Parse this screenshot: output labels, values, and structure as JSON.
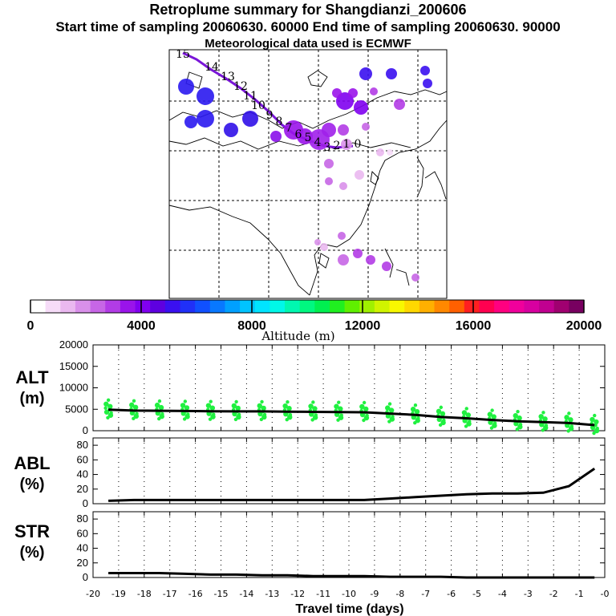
{
  "header": {
    "title": "Retroplume summary for Shangdianzi_200606",
    "subtitle": "Start time of sampling 20060630. 60000     End time of sampling 20060630. 90000",
    "met": "Meteorological data used is ECMWF"
  },
  "colorbar": {
    "ticks": [
      "0",
      "4000",
      "8000",
      "12000",
      "16000",
      "20000"
    ],
    "label": "Altitude (m)",
    "colors": [
      "#ffffff",
      "#f6dcf8",
      "#eab8f0",
      "#d990ea",
      "#c766e6",
      "#b23ce6",
      "#9a14ea",
      "#8000f0",
      "#5e00e0",
      "#3a10f0",
      "#2030f8",
      "#1050ff",
      "#0878ff",
      "#00a0ff",
      "#00c4ff",
      "#00e4ff",
      "#00f8e8",
      "#00f8b0",
      "#00f880",
      "#00f050",
      "#20f020",
      "#60f000",
      "#a0f000",
      "#d0f400",
      "#f8f800",
      "#ffd800",
      "#ffb000",
      "#ff8800",
      "#ff6000",
      "#ff2020",
      "#ff0050",
      "#ff0080",
      "#f0009c",
      "#d800a0",
      "#c00090",
      "#a00070",
      "#780060"
    ]
  },
  "map": {
    "labels": [
      "15",
      "14",
      "13",
      "12",
      "11",
      "10",
      "9",
      "8",
      "7",
      "6",
      "5",
      "4",
      "3",
      "2",
      "1",
      "0"
    ]
  },
  "chart_data": [
    {
      "type": "line",
      "panel": "ALT",
      "ylabel": "ALT (m)",
      "ylim": [
        0,
        20000
      ],
      "yticks": [
        "0",
        "5000",
        "10000",
        "15000",
        "20000"
      ],
      "x": [
        -19.4,
        -18.4,
        -17.4,
        -16.4,
        -15.4,
        -14.4,
        -13.4,
        -12.4,
        -11.4,
        -10.4,
        -9.4,
        -8.4,
        -7.4,
        -6.4,
        -5.4,
        -4.4,
        -3.4,
        -2.4,
        -1.4,
        -0.4
      ],
      "values": [
        4900,
        4700,
        4650,
        4600,
        4550,
        4500,
        4500,
        4450,
        4400,
        4350,
        4300,
        4000,
        3700,
        3200,
        2900,
        2500,
        2200,
        2000,
        1800,
        1300
      ],
      "scatter_color": "#20f040"
    },
    {
      "type": "line",
      "panel": "ABL",
      "ylabel": "ABL (%)",
      "ylim": [
        0,
        90
      ],
      "yticks": [
        "0",
        "20",
        "40",
        "60",
        "80"
      ],
      "x": [
        -19.4,
        -18.4,
        -17.4,
        -16.4,
        -15.4,
        -14.4,
        -13.4,
        -12.4,
        -11.4,
        -10.4,
        -9.4,
        -8.4,
        -7.4,
        -6.4,
        -5.4,
        -4.4,
        -3.4,
        -2.4,
        -1.4,
        -0.4
      ],
      "values": [
        4,
        5,
        5,
        5,
        5,
        5,
        5,
        5,
        5,
        5,
        5,
        7,
        9,
        11,
        13,
        14,
        14,
        15,
        24,
        48
      ]
    },
    {
      "type": "line",
      "panel": "STR",
      "ylabel": "STR (%)",
      "ylim": [
        0,
        90
      ],
      "yticks": [
        "0",
        "20",
        "40",
        "60",
        "80"
      ],
      "x": [
        -19.4,
        -18.4,
        -17.4,
        -16.4,
        -15.4,
        -14.4,
        -13.4,
        -12.4,
        -11.4,
        -10.4,
        -9.4,
        -8.4,
        -7.4,
        -6.4,
        -5.4,
        -4.4,
        -3.4,
        -2.4,
        -1.4,
        -0.4
      ],
      "values": [
        6,
        6,
        6,
        5,
        4,
        4,
        3,
        3,
        2,
        2,
        2,
        1,
        1,
        1,
        0,
        0,
        0,
        0,
        0,
        0
      ],
      "xlabel": "Travel time (days)",
      "xlim": [
        -20,
        0
      ],
      "xticks": [
        "-20",
        "-19",
        "-18",
        "-17",
        "-16",
        "-15",
        "-14",
        "-13",
        "-12",
        "-11",
        "-10",
        "-9",
        "-8",
        "-7",
        "-6",
        "-5",
        "-4",
        "-3",
        "-2",
        "-1",
        "-0"
      ]
    }
  ]
}
